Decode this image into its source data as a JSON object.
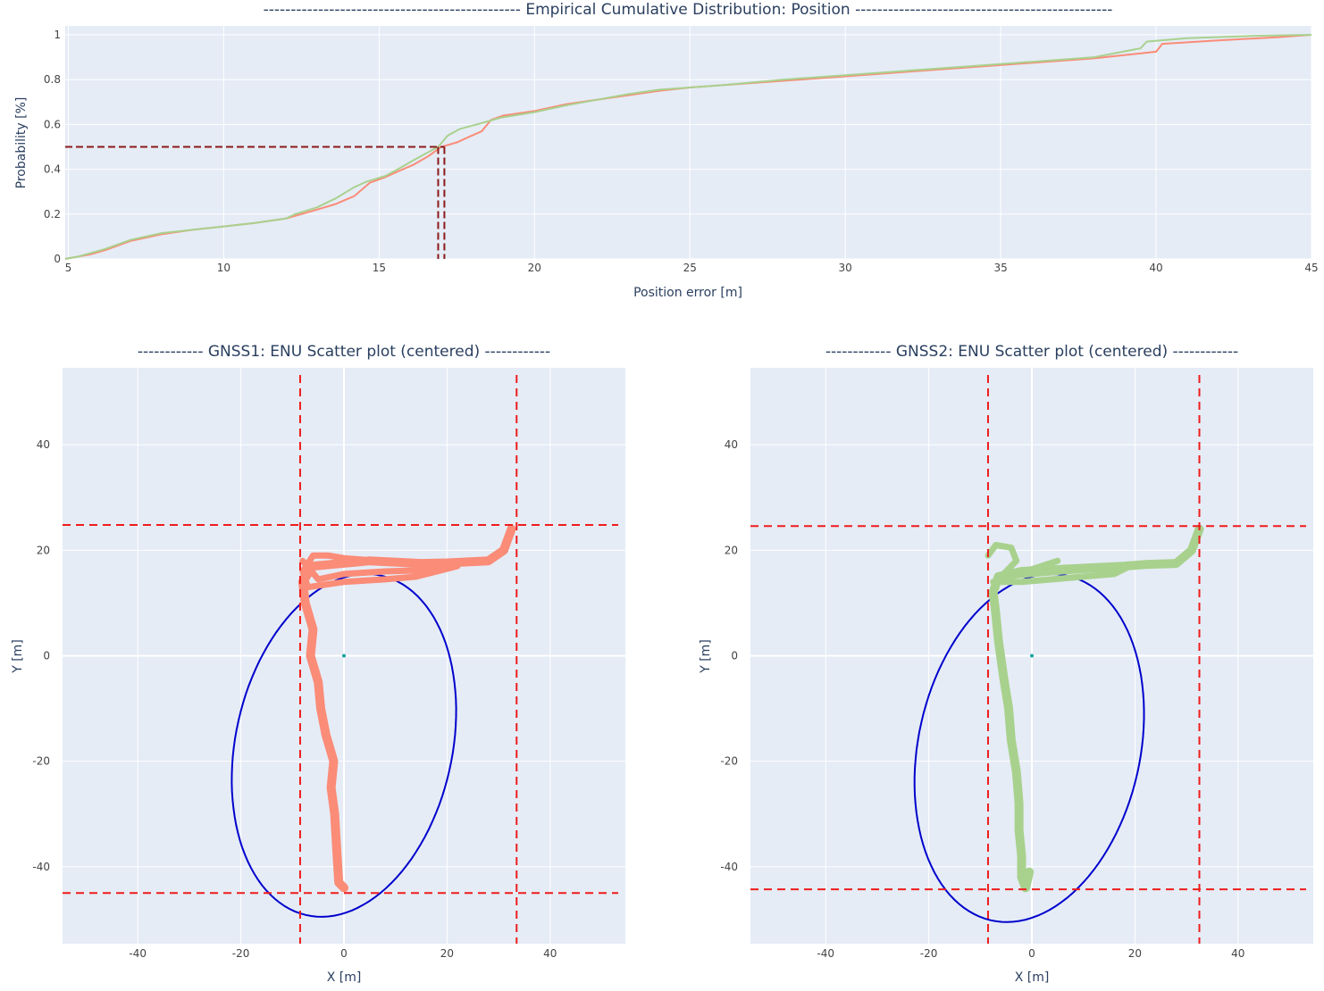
{
  "chart_data": [
    {
      "type": "line",
      "title": "-----------------------------------------------  Empirical Cumulative Distribution: Position  -----------------------------------------------",
      "xlabel": "Position error [m]",
      "ylabel": "Probability [%]",
      "xlim": [
        4.9,
        45
      ],
      "ylim": [
        0,
        1.04
      ],
      "xticks": [
        5,
        10,
        15,
        20,
        25,
        30,
        35,
        40,
        45
      ],
      "yticks": [
        0,
        0.2,
        0.4,
        0.6,
        0.8,
        1
      ],
      "ytick_labels": [
        "0",
        "0.2",
        "0.4",
        "0.6",
        "0.8",
        "1"
      ],
      "grid": true,
      "series": [
        {
          "color": "#fa8c78",
          "x": [
            4.9,
            5.3,
            5.7,
            6.2,
            7,
            8,
            9,
            10,
            11,
            12,
            12.5,
            13,
            13.6,
            14.2,
            14.7,
            15.2,
            15.6,
            16.1,
            16.6,
            17,
            17.5,
            17.9,
            18.3,
            18.6,
            19,
            20,
            21,
            22,
            23,
            24,
            25,
            26,
            28,
            30,
            32,
            34,
            36,
            38,
            40,
            40.2,
            42,
            44,
            45
          ],
          "y": [
            0,
            0.01,
            0.02,
            0.04,
            0.08,
            0.11,
            0.13,
            0.145,
            0.16,
            0.18,
            0.2,
            0.22,
            0.245,
            0.28,
            0.34,
            0.365,
            0.39,
            0.42,
            0.46,
            0.5,
            0.52,
            0.545,
            0.57,
            0.62,
            0.64,
            0.66,
            0.69,
            0.71,
            0.73,
            0.75,
            0.765,
            0.775,
            0.795,
            0.815,
            0.835,
            0.855,
            0.875,
            0.895,
            0.925,
            0.96,
            0.975,
            0.99,
            1
          ]
        },
        {
          "color": "#a9d18e",
          "x": [
            4.9,
            5.3,
            5.7,
            6.2,
            7,
            8,
            9,
            10,
            11,
            12,
            12.3,
            13,
            13.6,
            14.2,
            14.6,
            15.2,
            15.6,
            16.1,
            16.5,
            16.9,
            17.2,
            17.6,
            18,
            18.4,
            18.9,
            20,
            21,
            22,
            23,
            24,
            25,
            26,
            28,
            30,
            32,
            34,
            36,
            38,
            39.5,
            39.7,
            41,
            43,
            45
          ],
          "y": [
            0,
            0.01,
            0.025,
            0.045,
            0.085,
            0.115,
            0.13,
            0.145,
            0.16,
            0.18,
            0.2,
            0.23,
            0.27,
            0.32,
            0.345,
            0.37,
            0.4,
            0.44,
            0.47,
            0.5,
            0.55,
            0.58,
            0.595,
            0.61,
            0.63,
            0.655,
            0.685,
            0.71,
            0.735,
            0.755,
            0.765,
            0.775,
            0.8,
            0.82,
            0.84,
            0.86,
            0.88,
            0.9,
            0.94,
            0.97,
            0.985,
            0.995,
            1
          ]
        }
      ],
      "median_lines": [
        {
          "x": 16.9,
          "y": 0.5,
          "color": "#8b1a1a"
        },
        {
          "x": 17.1,
          "y": 0.5,
          "color": "#8b1a1a"
        }
      ]
    },
    {
      "type": "scatter",
      "title": "------------ GNSS1: ENU Scatter plot (centered) ------------",
      "xlabel": "X [m]",
      "ylabel": "Y [m]",
      "xlim": [
        -54.6,
        54.6
      ],
      "ylim": [
        -54.6,
        54.6
      ],
      "xticks": [
        -40,
        -20,
        0,
        20,
        40
      ],
      "yticks": [
        -40,
        -20,
        0,
        20,
        40
      ],
      "grid": true,
      "track_color": "#fa8c78",
      "track": [
        [
          0,
          -44
        ],
        [
          -1,
          -43
        ],
        [
          -1.2,
          -40
        ],
        [
          -1.5,
          -35
        ],
        [
          -1.8,
          -30
        ],
        [
          -2.5,
          -25
        ],
        [
          -2,
          -20
        ],
        [
          -3.5,
          -15
        ],
        [
          -4.5,
          -10
        ],
        [
          -5,
          -5
        ],
        [
          -6.5,
          0
        ],
        [
          -6,
          5
        ],
        [
          -7.5,
          10
        ],
        [
          -8,
          14
        ],
        [
          -6,
          17
        ],
        [
          5,
          18
        ],
        [
          15,
          17.5
        ],
        [
          20,
          17.6
        ],
        [
          28,
          18
        ],
        [
          31,
          20
        ],
        [
          32.5,
          24
        ]
      ],
      "track2": [
        [
          -8,
          18
        ],
        [
          -5,
          14.5
        ],
        [
          0,
          15.5
        ],
        [
          8,
          16
        ],
        [
          18,
          16.3
        ],
        [
          22,
          17
        ],
        [
          14,
          15
        ],
        [
          8,
          14.5
        ],
        [
          0,
          14
        ],
        [
          -7,
          13
        ],
        [
          -8,
          16
        ],
        [
          -6,
          19
        ],
        [
          -3,
          19
        ],
        [
          0,
          18.5
        ],
        [
          13,
          17.5
        ]
      ],
      "center": [
        0,
        0
      ],
      "ellipse": {
        "center": [
          0,
          -17
        ],
        "semi_major": 33,
        "semi_minor": 21,
        "angle_deg": 77,
        "color": "#0000cc"
      },
      "bounds": {
        "xmin": -8.5,
        "xmax": 33.5,
        "ymin": -45,
        "ymax": 24.8,
        "color": "#ef1c1c"
      }
    },
    {
      "type": "scatter",
      "title": "------------ GNSS2: ENU Scatter plot (centered) ------------",
      "xlabel": "X [m]",
      "ylabel": "Y [m]",
      "xlim": [
        -54.6,
        54.6
      ],
      "ylim": [
        -54.6,
        54.6
      ],
      "xticks": [
        -40,
        -20,
        0,
        20,
        40
      ],
      "yticks": [
        -40,
        -20,
        0,
        20,
        40
      ],
      "grid": true,
      "track_color": "#a9d18e",
      "track": [
        [
          -0.5,
          -41
        ],
        [
          -1.2,
          -44
        ],
        [
          -2,
          -42
        ],
        [
          -2,
          -38
        ],
        [
          -2.5,
          -33
        ],
        [
          -2.5,
          -28
        ],
        [
          -3,
          -22
        ],
        [
          -4,
          -16
        ],
        [
          -4.5,
          -10
        ],
        [
          -5.5,
          -4
        ],
        [
          -6.5,
          3
        ],
        [
          -7,
          8
        ],
        [
          -7.5,
          12
        ],
        [
          -6.5,
          15
        ],
        [
          -2,
          16
        ],
        [
          8,
          16.5
        ],
        [
          18,
          17
        ],
        [
          22,
          17.3
        ],
        [
          28,
          17.5
        ],
        [
          31,
          20
        ],
        [
          32.5,
          24
        ]
      ],
      "track2": [
        [
          -8.5,
          19
        ],
        [
          -7,
          21
        ],
        [
          -4,
          20.5
        ],
        [
          -3,
          18
        ],
        [
          -6,
          15
        ],
        [
          0,
          15.5
        ],
        [
          6,
          16
        ],
        [
          14,
          16.5
        ],
        [
          19,
          17
        ],
        [
          16,
          15.5
        ],
        [
          10,
          15
        ],
        [
          4,
          14.5
        ],
        [
          -2,
          14
        ],
        [
          -7.5,
          14
        ],
        [
          5,
          18
        ]
      ],
      "center": [
        0,
        0
      ],
      "ellipse": {
        "center": [
          -0.5,
          -17.5
        ],
        "semi_major": 33.5,
        "semi_minor": 21.5,
        "angle_deg": 77,
        "color": "#0000cc"
      },
      "bounds": {
        "xmin": -8.5,
        "xmax": 32.5,
        "ymin": -44.3,
        "ymax": 24.6,
        "color": "#ef1c1c"
      }
    }
  ]
}
